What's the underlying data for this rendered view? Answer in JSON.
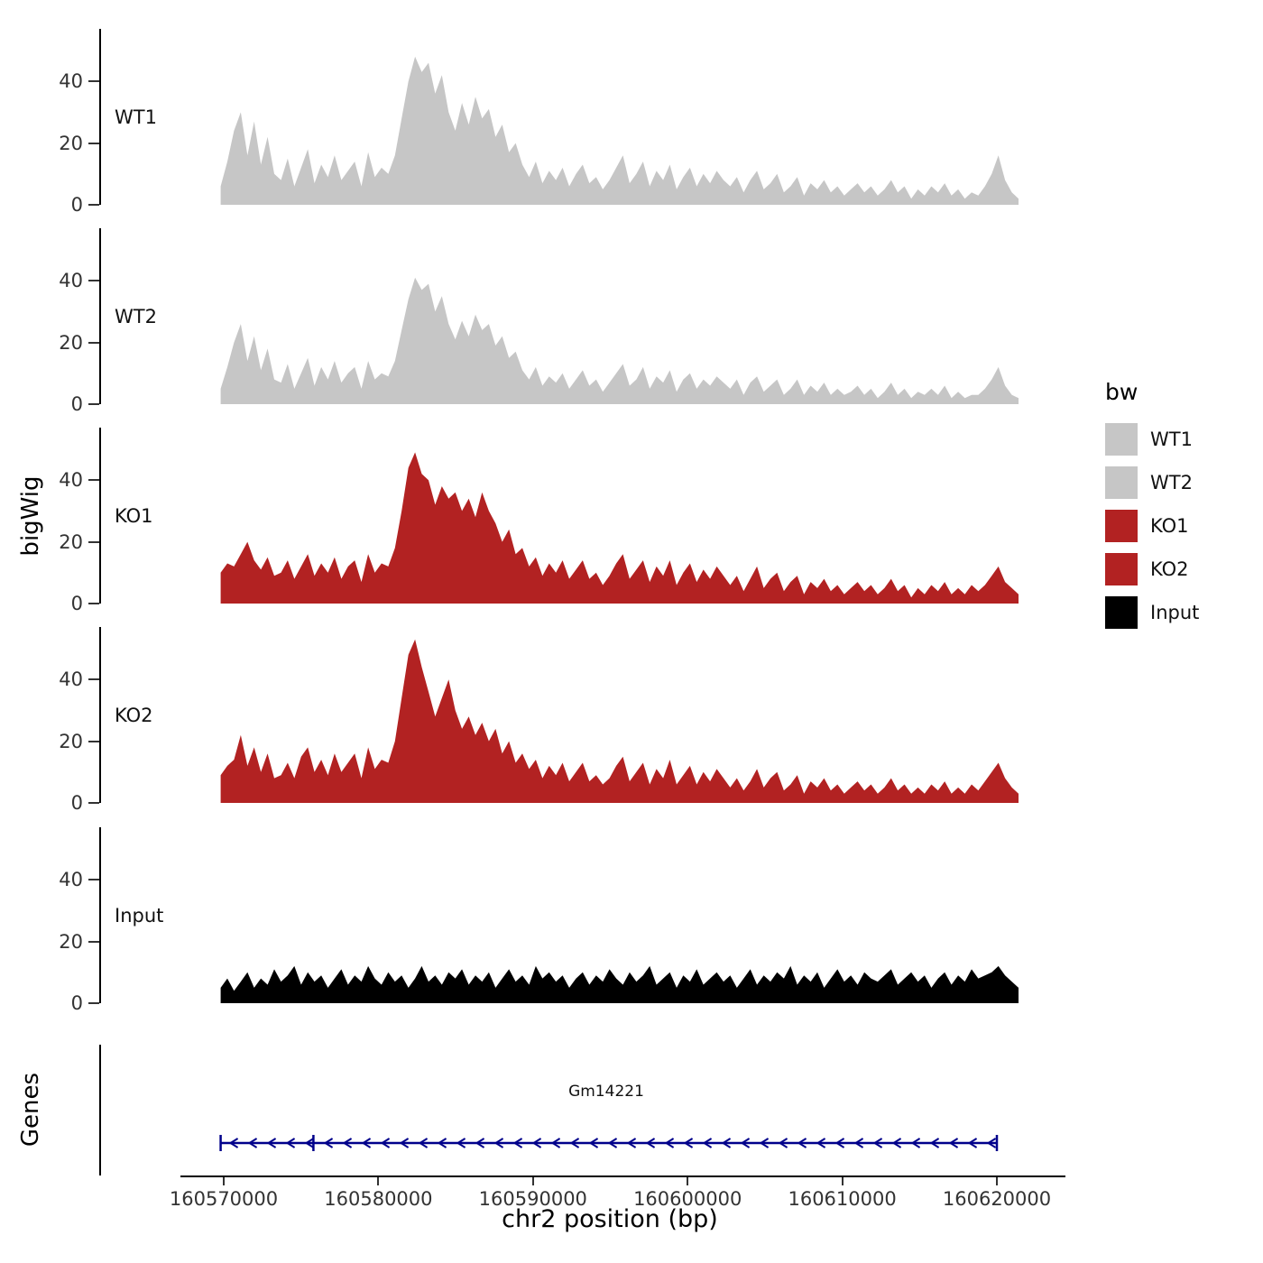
{
  "chart_data": {
    "type": "area",
    "xlabel": "chr2 position (bp)",
    "ylabel": "bigWig",
    "genes_label": "Genes",
    "x_start": 160569800,
    "x_end": 160621400,
    "x_ticks": [
      160570000,
      160580000,
      160590000,
      160600000,
      160610000,
      160620000
    ],
    "x_tick_labels": [
      "160570000",
      "160580000",
      "160590000",
      "160600000",
      "160610000",
      "160620000"
    ],
    "y_ticks": [
      0,
      20,
      40
    ],
    "ylim": [
      0,
      57
    ],
    "tracks": [
      {
        "name": "WT1",
        "color": "#c6c6c6",
        "values": [
          6,
          14,
          24,
          30,
          16,
          27,
          13,
          22,
          10,
          8,
          15,
          6,
          12,
          18,
          7,
          13,
          9,
          16,
          8,
          11,
          14,
          6,
          17,
          9,
          12,
          10,
          16,
          28,
          40,
          48,
          43,
          46,
          36,
          42,
          30,
          24,
          33,
          26,
          35,
          28,
          31,
          22,
          26,
          17,
          20,
          13,
          9,
          14,
          7,
          11,
          8,
          12,
          6,
          10,
          13,
          7,
          9,
          5,
          8,
          12,
          16,
          7,
          10,
          14,
          6,
          11,
          8,
          13,
          5,
          9,
          12,
          6,
          10,
          7,
          11,
          8,
          6,
          9,
          4,
          8,
          11,
          5,
          7,
          10,
          4,
          6,
          9,
          3,
          7,
          5,
          8,
          4,
          6,
          3,
          5,
          7,
          4,
          6,
          3,
          5,
          8,
          4,
          6,
          2,
          5,
          3,
          6,
          4,
          7,
          3,
          5,
          2,
          4,
          3,
          6,
          10,
          16,
          8,
          4,
          2
        ]
      },
      {
        "name": "WT2",
        "color": "#c6c6c6",
        "values": [
          5,
          12,
          20,
          26,
          14,
          22,
          11,
          18,
          8,
          7,
          13,
          5,
          10,
          15,
          6,
          12,
          8,
          14,
          7,
          10,
          12,
          5,
          14,
          8,
          10,
          9,
          14,
          24,
          34,
          41,
          37,
          39,
          30,
          35,
          26,
          21,
          27,
          22,
          29,
          24,
          26,
          19,
          22,
          15,
          17,
          11,
          8,
          12,
          6,
          9,
          7,
          10,
          5,
          8,
          11,
          6,
          8,
          4,
          7,
          10,
          13,
          6,
          8,
          12,
          5,
          9,
          7,
          11,
          4,
          8,
          10,
          5,
          8,
          6,
          9,
          7,
          5,
          8,
          3,
          7,
          9,
          4,
          6,
          8,
          3,
          5,
          8,
          3,
          6,
          4,
          7,
          3,
          5,
          3,
          4,
          6,
          3,
          5,
          2,
          4,
          7,
          3,
          5,
          2,
          4,
          3,
          5,
          3,
          6,
          2,
          4,
          2,
          3,
          3,
          5,
          8,
          12,
          6,
          3,
          2
        ]
      },
      {
        "name": "KO1",
        "color": "#b22222",
        "values": [
          10,
          13,
          12,
          16,
          20,
          14,
          11,
          15,
          9,
          10,
          14,
          8,
          12,
          16,
          9,
          13,
          10,
          15,
          8,
          12,
          14,
          7,
          16,
          10,
          13,
          12,
          18,
          30,
          44,
          49,
          42,
          40,
          32,
          38,
          34,
          36,
          30,
          34,
          28,
          36,
          30,
          26,
          20,
          24,
          16,
          18,
          12,
          15,
          9,
          13,
          10,
          14,
          8,
          11,
          14,
          8,
          10,
          6,
          9,
          13,
          16,
          8,
          11,
          14,
          7,
          12,
          9,
          14,
          6,
          10,
          13,
          7,
          11,
          8,
          12,
          9,
          6,
          9,
          4,
          8,
          12,
          5,
          8,
          10,
          4,
          7,
          9,
          3,
          7,
          5,
          8,
          4,
          6,
          3,
          5,
          7,
          4,
          6,
          3,
          5,
          8,
          4,
          6,
          2,
          5,
          3,
          6,
          4,
          7,
          3,
          5,
          3,
          6,
          4,
          6,
          9,
          12,
          7,
          5,
          3
        ]
      },
      {
        "name": "KO2",
        "color": "#b22222",
        "values": [
          9,
          12,
          14,
          22,
          12,
          18,
          10,
          16,
          8,
          9,
          13,
          8,
          15,
          18,
          10,
          14,
          9,
          16,
          10,
          13,
          16,
          8,
          18,
          11,
          14,
          13,
          20,
          34,
          48,
          53,
          44,
          36,
          28,
          34,
          40,
          30,
          24,
          28,
          22,
          26,
          20,
          24,
          16,
          20,
          13,
          16,
          11,
          14,
          8,
          12,
          9,
          13,
          7,
          10,
          13,
          7,
          9,
          6,
          8,
          12,
          15,
          7,
          10,
          13,
          6,
          11,
          8,
          14,
          6,
          9,
          12,
          6,
          10,
          7,
          11,
          8,
          5,
          8,
          4,
          7,
          11,
          5,
          8,
          10,
          4,
          6,
          9,
          3,
          7,
          5,
          8,
          4,
          6,
          3,
          5,
          7,
          4,
          6,
          3,
          5,
          8,
          4,
          6,
          3,
          5,
          3,
          6,
          4,
          7,
          3,
          5,
          3,
          6,
          4,
          7,
          10,
          13,
          8,
          5,
          3
        ]
      },
      {
        "name": "Input",
        "color": "#000000",
        "values": [
          5,
          8,
          4,
          7,
          10,
          5,
          8,
          6,
          11,
          7,
          9,
          12,
          6,
          10,
          7,
          9,
          5,
          8,
          11,
          6,
          9,
          7,
          12,
          8,
          6,
          10,
          7,
          9,
          5,
          8,
          12,
          7,
          9,
          6,
          10,
          8,
          11,
          6,
          9,
          7,
          10,
          5,
          8,
          11,
          7,
          9,
          6,
          12,
          8,
          10,
          7,
          9,
          5,
          8,
          10,
          6,
          9,
          7,
          11,
          8,
          6,
          10,
          7,
          9,
          12,
          6,
          8,
          10,
          5,
          9,
          7,
          11,
          6,
          8,
          10,
          7,
          9,
          5,
          8,
          11,
          6,
          9,
          7,
          10,
          8,
          12,
          6,
          9,
          7,
          10,
          5,
          8,
          11,
          7,
          9,
          6,
          10,
          8,
          7,
          9,
          11,
          6,
          8,
          10,
          7,
          9,
          5,
          8,
          10,
          6,
          9,
          7,
          11,
          8,
          9,
          10,
          12,
          9,
          7,
          5
        ]
      }
    ],
    "legend": {
      "title": "bw",
      "entries": [
        {
          "label": "WT1",
          "color": "#c6c6c6"
        },
        {
          "label": "WT2",
          "color": "#c6c6c6"
        },
        {
          "label": "KO1",
          "color": "#b22222"
        },
        {
          "label": "KO2",
          "color": "#b22222"
        },
        {
          "label": "Input",
          "color": "#000000"
        }
      ]
    },
    "gene_track": {
      "gene_name": "Gm14221",
      "strand": "-",
      "start": 160569800,
      "end": 160620000,
      "color": "#00008b",
      "marks": [
        160569800,
        160575800,
        160620000
      ]
    }
  }
}
